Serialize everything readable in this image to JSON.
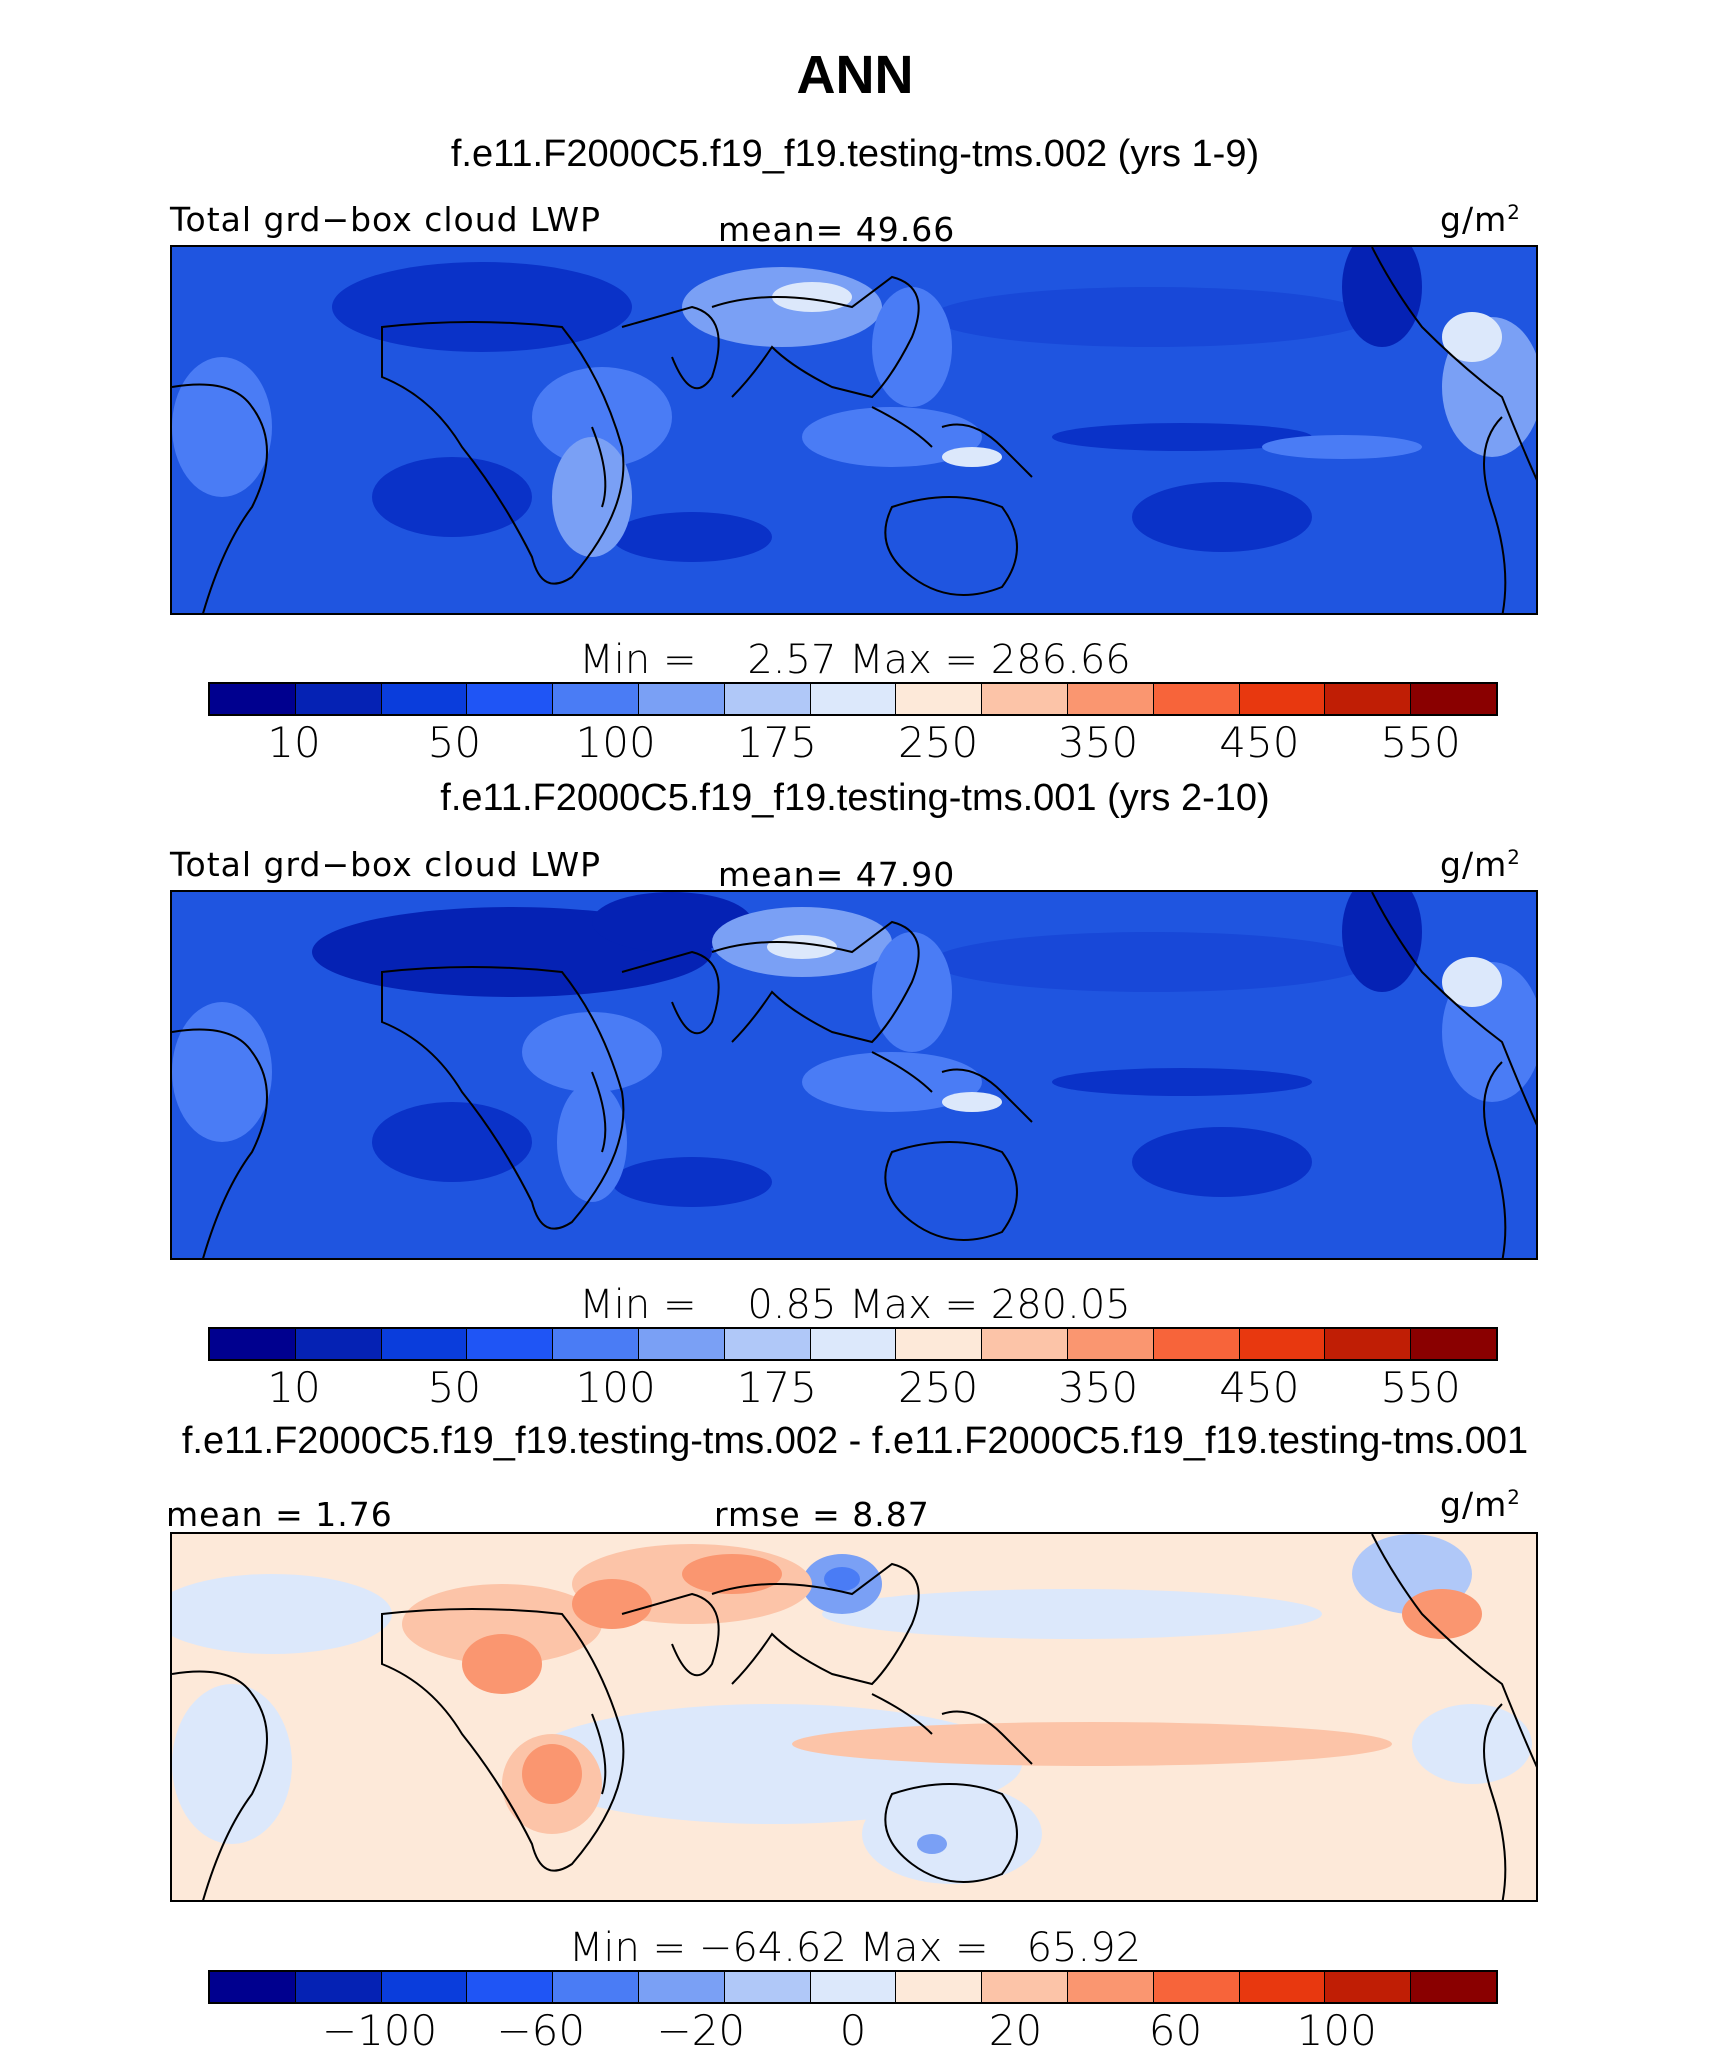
{
  "figure_title": "ANN",
  "panels": [
    {
      "case_title": "f.e11.F2000C5.f19_f19.testing-tms.002 (yrs 1-9)",
      "left_label": "Total grd−box cloud LWP",
      "mid_label": "mean=  49.66",
      "units": "g/m",
      "units_sup": "2",
      "minmax": "Min =    2.57 Max = 286.66",
      "ticks": [
        "10",
        "50",
        "100",
        "175",
        "250",
        "350",
        "450",
        "550"
      ]
    },
    {
      "case_title": "f.e11.F2000C5.f19_f19.testing-tms.001 (yrs 2-10)",
      "left_label": "Total grd−box cloud LWP",
      "mid_label": "mean=  47.90",
      "units": "g/m",
      "units_sup": "2",
      "minmax": "Min =    0.85 Max = 280.05",
      "ticks": [
        "10",
        "50",
        "100",
        "175",
        "250",
        "350",
        "450",
        "550"
      ]
    },
    {
      "case_title": "f.e11.F2000C5.f19_f19.testing-tms.002 - f.e11.F2000C5.f19_f19.testing-tms.001",
      "left_label": "mean =   1.76",
      "mid_label": "rmse =    8.87",
      "units": "g/m",
      "units_sup": "2",
      "minmax": "Min = −64.62 Max =   65.92",
      "ticks": [
        "−100",
        "−60",
        "−20",
        "0",
        "20",
        "60",
        "100"
      ]
    }
  ],
  "colorbar_colors": [
    "#00008f",
    "#0522b4",
    "#0a3ddc",
    "#1f55f5",
    "#4a7cf5",
    "#7aa0f5",
    "#b0c8f8",
    "#dce8fb",
    "#fde9d9",
    "#fcc4a8",
    "#fa9670",
    "#f7643a",
    "#e8380f",
    "#c01e05",
    "#8a0000"
  ],
  "colors": {
    "ocean_base": "#1f55e0",
    "dry_dark": "#0a32c8",
    "moist": "#7aa0f5",
    "very_moist": "#dce8fb",
    "diff_base": "#fde9d9",
    "diff_neg": "#dce8fb",
    "diff_pos": "#fa9670"
  }
}
